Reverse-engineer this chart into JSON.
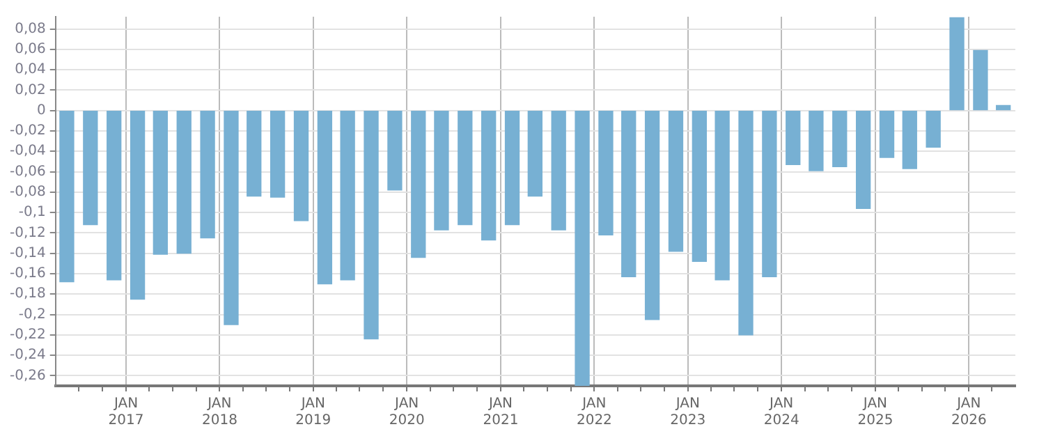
{
  "chart_data": {
    "type": "bar",
    "color": "#77b0d3",
    "x": [
      "2016-05-15",
      "2016-08-15",
      "2016-11-15",
      "2017-02-15",
      "2017-05-15",
      "2017-08-15",
      "2017-11-15",
      "2018-02-15",
      "2018-05-15",
      "2018-08-15",
      "2018-11-15",
      "2019-02-15",
      "2019-05-15",
      "2019-08-15",
      "2019-11-15",
      "2020-02-15",
      "2020-05-15",
      "2020-08-15",
      "2020-11-15",
      "2021-02-15",
      "2021-05-15",
      "2021-08-15",
      "2021-11-15",
      "2022-02-15",
      "2022-05-15",
      "2022-08-15",
      "2022-11-15",
      "2023-02-15",
      "2023-05-15",
      "2023-08-15",
      "2023-11-15",
      "2024-02-15",
      "2024-05-15",
      "2024-08-15",
      "2024-11-15",
      "2025-02-15",
      "2025-05-15",
      "2025-08-15",
      "2025-11-15",
      "2026-02-15",
      "2026-05-15"
    ],
    "values": [
      -0.168,
      -0.112,
      -0.166,
      -0.185,
      -0.141,
      -0.14,
      -0.125,
      -0.21,
      -0.084,
      -0.085,
      -0.108,
      -0.17,
      -0.166,
      -0.224,
      -0.078,
      -0.144,
      -0.117,
      -0.112,
      -0.127,
      -0.112,
      -0.084,
      -0.117,
      -0.27,
      -0.122,
      -0.163,
      -0.205,
      -0.138,
      -0.148,
      -0.166,
      -0.22,
      -0.163,
      -0.053,
      -0.059,
      -0.055,
      -0.096,
      -0.046,
      -0.057,
      -0.036,
      0.091,
      0.059,
      0.005
    ],
    "xlim": [
      "2016-04-01",
      "2026-07-01"
    ],
    "xticks": [
      {
        "value": "2016-07-01",
        "label": null
      },
      {
        "value": "2016-10-01",
        "label": null
      },
      {
        "value": "2017-01-01",
        "label": "JAN\n2017"
      },
      {
        "value": "2017-04-01",
        "label": null
      },
      {
        "value": "2017-07-01",
        "label": null
      },
      {
        "value": "2017-10-01",
        "label": null
      },
      {
        "value": "2018-01-01",
        "label": "JAN\n2018"
      },
      {
        "value": "2018-04-01",
        "label": null
      },
      {
        "value": "2018-07-01",
        "label": null
      },
      {
        "value": "2018-10-01",
        "label": null
      },
      {
        "value": "2019-01-01",
        "label": "JAN\n2019"
      },
      {
        "value": "2019-04-01",
        "label": null
      },
      {
        "value": "2019-07-01",
        "label": null
      },
      {
        "value": "2019-10-01",
        "label": null
      },
      {
        "value": "2020-01-01",
        "label": "JAN\n2020"
      },
      {
        "value": "2020-04-01",
        "label": null
      },
      {
        "value": "2020-07-01",
        "label": null
      },
      {
        "value": "2020-10-01",
        "label": null
      },
      {
        "value": "2021-01-01",
        "label": "JAN\n2021"
      },
      {
        "value": "2021-04-01",
        "label": null
      },
      {
        "value": "2021-07-01",
        "label": null
      },
      {
        "value": "2021-10-01",
        "label": null
      },
      {
        "value": "2022-01-01",
        "label": "JAN\n2022"
      },
      {
        "value": "2022-04-01",
        "label": null
      },
      {
        "value": "2022-07-01",
        "label": null
      },
      {
        "value": "2022-10-01",
        "label": null
      },
      {
        "value": "2023-01-01",
        "label": "JAN\n2023"
      },
      {
        "value": "2023-04-01",
        "label": null
      },
      {
        "value": "2023-07-01",
        "label": null
      },
      {
        "value": "2023-10-01",
        "label": null
      },
      {
        "value": "2024-01-01",
        "label": "JAN\n2024"
      },
      {
        "value": "2024-04-01",
        "label": null
      },
      {
        "value": "2024-07-01",
        "label": null
      },
      {
        "value": "2024-10-01",
        "label": null
      },
      {
        "value": "2025-01-01",
        "label": "JAN\n2025"
      },
      {
        "value": "2025-04-01",
        "label": null
      },
      {
        "value": "2025-07-01",
        "label": null
      },
      {
        "value": "2025-10-01",
        "label": null
      },
      {
        "value": "2026-01-01",
        "label": "JAN\n2026"
      },
      {
        "value": "2026-04-01",
        "label": null
      }
    ],
    "ylim": [
      -0.27,
      0.092
    ],
    "yticks": [
      {
        "value": 0.08,
        "label": "0,08"
      },
      {
        "value": 0.06,
        "label": "0,06"
      },
      {
        "value": 0.04,
        "label": "0,04"
      },
      {
        "value": 0.02,
        "label": "0,02"
      },
      0,
      {
        "value": -0.02,
        "label": "-0,02"
      },
      {
        "value": -0.04,
        "label": "-0,04"
      },
      {
        "value": -0.06,
        "label": "-0,06"
      },
      {
        "value": -0.08,
        "label": "-0,08"
      },
      {
        "value": -0.1,
        "label": "-0,1"
      },
      {
        "value": -0.12,
        "label": "-0,12"
      },
      {
        "value": -0.14,
        "label": "-0,14"
      },
      {
        "value": -0.16,
        "label": "-0,16"
      },
      {
        "value": -0.18,
        "label": "-0,18"
      },
      {
        "value": -0.2,
        "label": "-0,2"
      },
      {
        "value": -0.22,
        "label": "-0,22"
      },
      {
        "value": -0.24,
        "label": "-0,24"
      },
      {
        "value": -0.26,
        "label": "-0,26"
      }
    ],
    "grid": true,
    "legend": false
  }
}
